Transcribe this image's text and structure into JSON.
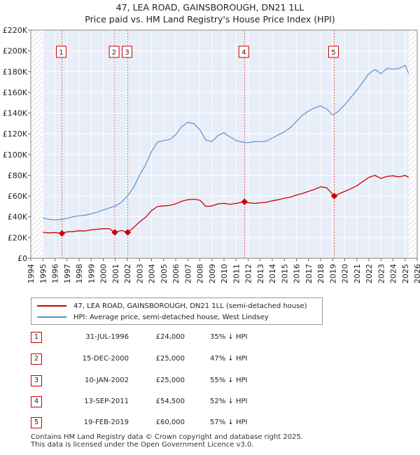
{
  "title": "47, LEA ROAD, GAINSBOROUGH, DN21 1LL",
  "subtitle": "Price paid vs. HM Land Registry's House Price Index (HPI)",
  "chart_data": {
    "type": "line",
    "title": "47, LEA ROAD, GAINSBOROUGH, DN21 1LL",
    "subtitle": "Price paid vs. HM Land Registry's House Price Index (HPI)",
    "xlim": [
      1994,
      2026
    ],
    "ylim": [
      0,
      220000
    ],
    "x_ticks": [
      1994,
      1995,
      1996,
      1997,
      1998,
      1999,
      2000,
      2001,
      2002,
      2003,
      2004,
      2005,
      2006,
      2007,
      2008,
      2009,
      2010,
      2011,
      2012,
      2013,
      2014,
      2015,
      2016,
      2017,
      2018,
      2019,
      2020,
      2021,
      2022,
      2023,
      2024,
      2025,
      2026
    ],
    "y_ticks": [
      {
        "value": 0,
        "label": "£0"
      },
      {
        "value": 20000,
        "label": "£20K"
      },
      {
        "value": 40000,
        "label": "£40K"
      },
      {
        "value": 60000,
        "label": "£60K"
      },
      {
        "value": 80000,
        "label": "£80K"
      },
      {
        "value": 100000,
        "label": "£100K"
      },
      {
        "value": 120000,
        "label": "£120K"
      },
      {
        "value": 140000,
        "label": "£140K"
      },
      {
        "value": 160000,
        "label": "£160K"
      },
      {
        "value": 180000,
        "label": "£180K"
      },
      {
        "value": 200000,
        "label": "£200K"
      },
      {
        "value": 220000,
        "label": "£220K"
      }
    ],
    "grid": true,
    "shaded_data_range": [
      1995.0,
      2025.3
    ],
    "hatched_regions": [
      [
        1994,
        1995.0
      ],
      [
        2025.3,
        2026
      ]
    ],
    "series": [
      {
        "name": "47, LEA ROAD, GAINSBOROUGH, DN21 1LL (semi-detached house)",
        "color": "#cc0000",
        "x": [
          1995.0,
          1995.5,
          1996.0,
          1996.58,
          1997.0,
          1997.5,
          1998.0,
          1998.5,
          1999.0,
          1999.5,
          2000.0,
          2000.5,
          2000.96,
          2001.5,
          2002.03,
          2002.5,
          2003.0,
          2003.5,
          2004.0,
          2004.5,
          2005.0,
          2005.5,
          2006.0,
          2006.5,
          2007.0,
          2007.5,
          2008.0,
          2008.5,
          2009.0,
          2009.5,
          2010.0,
          2010.5,
          2011.0,
          2011.7,
          2012.0,
          2012.5,
          2013.0,
          2013.5,
          2014.0,
          2014.5,
          2015.0,
          2015.5,
          2016.0,
          2016.5,
          2017.0,
          2017.5,
          2018.0,
          2018.5,
          2019.13,
          2019.5,
          2020.0,
          2020.5,
          2021.0,
          2021.5,
          2022.0,
          2022.5,
          2023.0,
          2023.5,
          2024.0,
          2024.5,
          2025.0,
          2025.3
        ],
        "values": [
          25000,
          24500,
          24800,
          24000,
          25500,
          25800,
          26500,
          26300,
          27500,
          28000,
          28500,
          28600,
          25000,
          26800,
          25000,
          29500,
          35000,
          39500,
          46000,
          50000,
          50500,
          51000,
          52500,
          55000,
          56500,
          57000,
          56000,
          50000,
          50500,
          52500,
          53000,
          52000,
          53000,
          54500,
          53500,
          53000,
          53500,
          54000,
          55500,
          56500,
          58000,
          59000,
          61000,
          62500,
          64500,
          66500,
          69000,
          68000,
          60000,
          62000,
          64500,
          67000,
          70000,
          74000,
          78000,
          80000,
          77000,
          79000,
          79500,
          78500,
          80000,
          78000
        ]
      },
      {
        "name": "HPI: Average price, semi-detached house, West Lindsey",
        "color": "#5b8fd0",
        "x": [
          1995.0,
          1995.5,
          1996.0,
          1996.5,
          1997.0,
          1997.5,
          1998.0,
          1998.5,
          1999.0,
          1999.5,
          2000.0,
          2000.5,
          2001.0,
          2001.5,
          2002.0,
          2002.5,
          2003.0,
          2003.5,
          2004.0,
          2004.5,
          2005.0,
          2005.5,
          2006.0,
          2006.5,
          2007.0,
          2007.5,
          2008.0,
          2008.5,
          2009.0,
          2009.5,
          2010.0,
          2010.5,
          2011.0,
          2011.5,
          2012.0,
          2012.5,
          2013.0,
          2013.5,
          2014.0,
          2014.5,
          2015.0,
          2015.5,
          2016.0,
          2016.5,
          2017.0,
          2017.5,
          2018.0,
          2018.5,
          2019.0,
          2019.5,
          2020.0,
          2020.5,
          2021.0,
          2021.5,
          2022.0,
          2022.5,
          2023.0,
          2023.5,
          2024.0,
          2024.5,
          2025.0,
          2025.3
        ],
        "values": [
          39000,
          37500,
          37000,
          37500,
          38500,
          40000,
          41000,
          41500,
          43000,
          44500,
          46500,
          48500,
          50500,
          54000,
          60000,
          68000,
          80000,
          90000,
          103000,
          112000,
          113500,
          114500,
          119000,
          127000,
          131000,
          130000,
          124000,
          114000,
          112500,
          118500,
          121000,
          117000,
          113500,
          112000,
          111500,
          112500,
          112500,
          113000,
          116000,
          119000,
          122000,
          126000,
          132000,
          138000,
          142000,
          145000,
          147000,
          144000,
          138000,
          142000,
          148000,
          155000,
          162000,
          170000,
          178000,
          182000,
          178000,
          183000,
          182500,
          183000,
          186000,
          178000
        ]
      }
    ],
    "sale_markers": [
      {
        "id": "1",
        "x": 1996.58,
        "value": 24000
      },
      {
        "id": "2",
        "x": 2000.96,
        "value": 25000
      },
      {
        "id": "3",
        "x": 2002.03,
        "value": 25000
      },
      {
        "id": "4",
        "x": 2011.7,
        "value": 54500
      },
      {
        "id": "5",
        "x": 2019.13,
        "value": 60000
      }
    ]
  },
  "legend": {
    "items": [
      {
        "label": "47, LEA ROAD, GAINSBOROUGH, DN21 1LL (semi-detached house)",
        "color": "#cc0000"
      },
      {
        "label": "HPI: Average price, semi-detached house, West Lindsey",
        "color": "#5b8fd0"
      }
    ]
  },
  "sales": [
    {
      "num": "1",
      "date": "31-JUL-1996",
      "price": "£24,000",
      "hpi": "35% ↓ HPI"
    },
    {
      "num": "2",
      "date": "15-DEC-2000",
      "price": "£25,000",
      "hpi": "47% ↓ HPI"
    },
    {
      "num": "3",
      "date": "10-JAN-2002",
      "price": "£25,000",
      "hpi": "55% ↓ HPI"
    },
    {
      "num": "4",
      "date": "13-SEP-2011",
      "price": "£54,500",
      "hpi": "52% ↓ HPI"
    },
    {
      "num": "5",
      "date": "19-FEB-2019",
      "price": "£60,000",
      "hpi": "57% ↓ HPI"
    }
  ],
  "footer": {
    "line1": "Contains HM Land Registry data © Crown copyright and database right 2025.",
    "line2": "This data is licensed under the Open Government Licence v3.0."
  }
}
